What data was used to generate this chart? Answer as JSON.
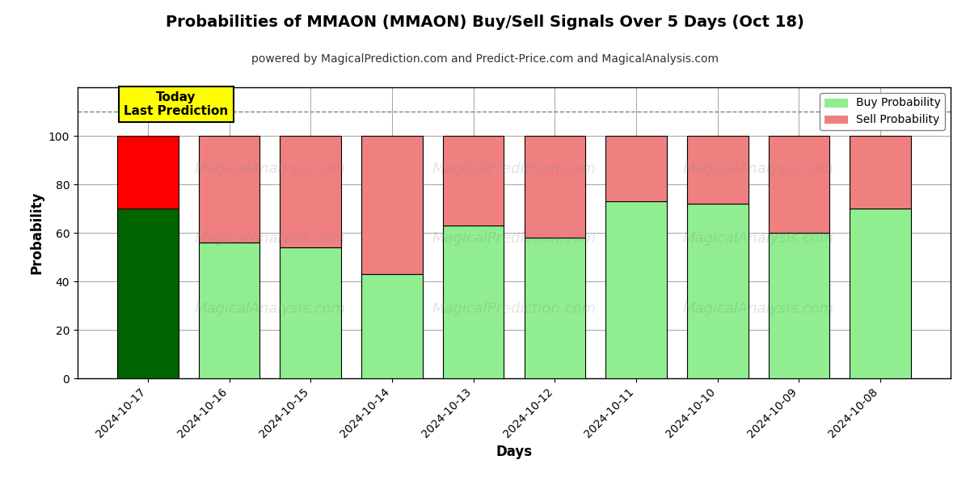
{
  "title": "Probabilities of MMAON (MMAON) Buy/Sell Signals Over 5 Days (Oct 18)",
  "subtitle": "powered by MagicalPrediction.com and Predict-Price.com and MagicalAnalysis.com",
  "xlabel": "Days",
  "ylabel": "Probability",
  "dates": [
    "2024-10-17",
    "2024-10-16",
    "2024-10-15",
    "2024-10-14",
    "2024-10-13",
    "2024-10-12",
    "2024-10-11",
    "2024-10-10",
    "2024-10-09",
    "2024-10-08"
  ],
  "buy_values": [
    70,
    56,
    54,
    43,
    63,
    58,
    73,
    72,
    60,
    70
  ],
  "sell_values": [
    30,
    44,
    46,
    57,
    37,
    42,
    27,
    28,
    40,
    30
  ],
  "today_buy_color": "#006400",
  "today_sell_color": "#FF0000",
  "buy_color": "#90EE90",
  "sell_color": "#F08080",
  "today_label_bg": "#FFFF00",
  "today_label_text": "Today\nLast Prediction",
  "legend_buy": "Buy Probability",
  "legend_sell": "Sell Probability",
  "dashed_line_y": 110,
  "ylim": [
    0,
    120
  ],
  "yticks": [
    0,
    20,
    40,
    60,
    80,
    100
  ],
  "background_color": "#ffffff",
  "bar_edgecolor": "#000000",
  "bar_linewidth": 0.8,
  "bar_width": 0.75
}
